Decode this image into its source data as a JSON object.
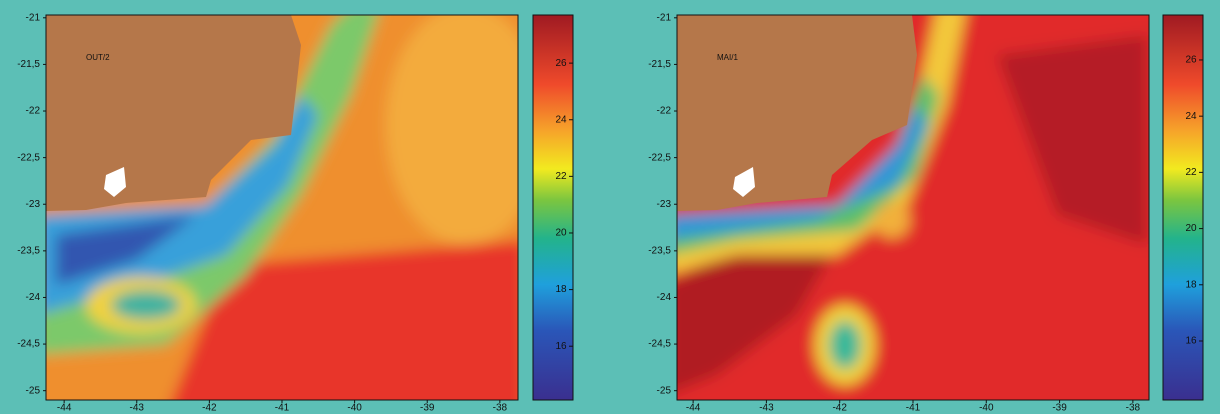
{
  "panels": [
    {
      "label": "OUT/2",
      "xlim": [
        -44.25,
        -37.75
      ],
      "xticks": [
        -44,
        -43,
        -42,
        -41,
        -40,
        -39,
        -38
      ],
      "ylim": [
        -25.1,
        -20.97
      ],
      "yticks": [
        -21,
        {
          "value": -21.5,
          "label": "-21,5"
        },
        -22,
        {
          "value": -22.5,
          "label": "-22,5"
        },
        -23,
        {
          "value": -23.5,
          "label": "-23,5"
        },
        -24,
        {
          "value": -24.5,
          "label": "-24,5"
        },
        -25
      ],
      "clim": [
        14.1,
        27.7
      ],
      "cticks": [
        16,
        18,
        20,
        22,
        24,
        26
      ]
    },
    {
      "label": "MAI/1",
      "xlim": [
        -44.22,
        -37.78
      ],
      "xticks": [
        -44,
        -43,
        -42,
        -41,
        -40,
        -39,
        -38
      ],
      "ylim": [
        -25.1,
        -20.97
      ],
      "yticks": [
        -21,
        {
          "value": -21.5,
          "label": "-21,5"
        },
        -22,
        {
          "value": -22.5,
          "label": "-22,5"
        },
        -23,
        {
          "value": -23.5,
          "label": "-23,5"
        },
        -24,
        {
          "value": -24.5,
          "label": "-24,5"
        },
        -25
      ],
      "clim": [
        13.9,
        27.6
      ],
      "cticks": [
        16,
        18,
        20,
        22,
        24,
        26
      ]
    }
  ]
}
